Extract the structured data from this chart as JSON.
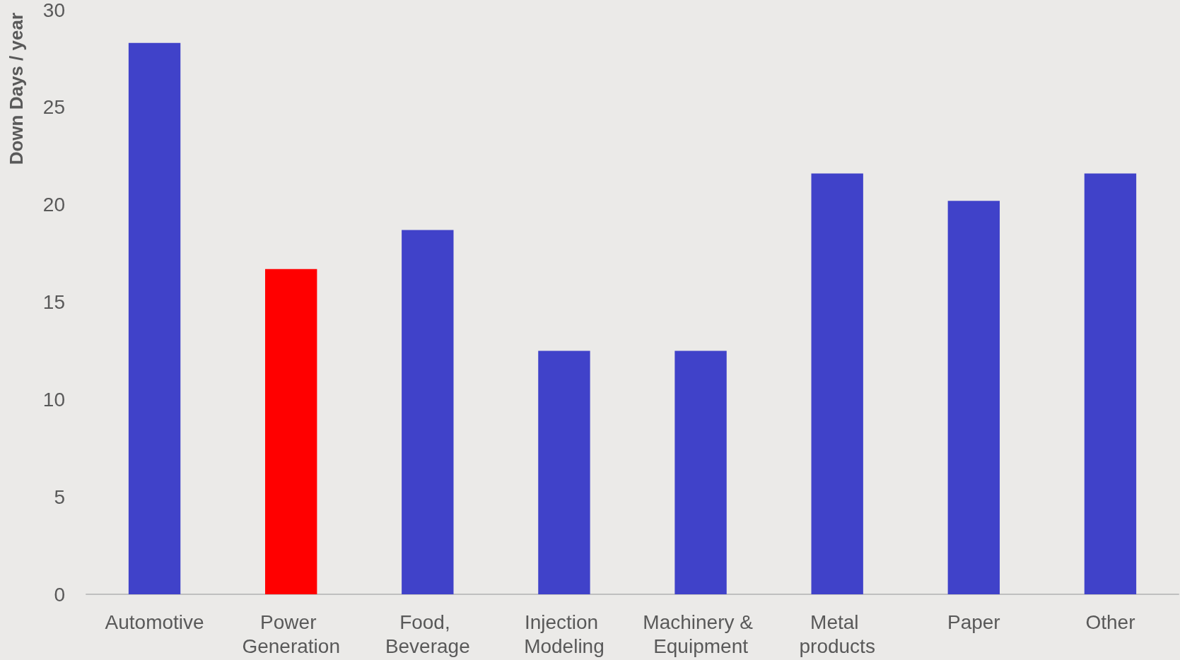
{
  "chart_data": {
    "type": "bar",
    "ylabel": "Down Days / year",
    "categories": [
      "Automotive",
      "Power Generation",
      "Food, Beverage",
      "Injection Modeling",
      "Machinery & Equipment",
      "Metal products",
      "Paper",
      "Other"
    ],
    "values": [
      28.3,
      16.7,
      18.7,
      12.5,
      12.5,
      21.6,
      20.2,
      21.6
    ],
    "colors": [
      "#4042c9",
      "#ff0000",
      "#4042c9",
      "#4042c9",
      "#4042c9",
      "#4042c9",
      "#4042c9",
      "#4042c9"
    ],
    "ylim": [
      0,
      30
    ],
    "yticks": [
      0,
      5,
      10,
      15,
      20,
      25,
      30
    ],
    "grid": false
  }
}
